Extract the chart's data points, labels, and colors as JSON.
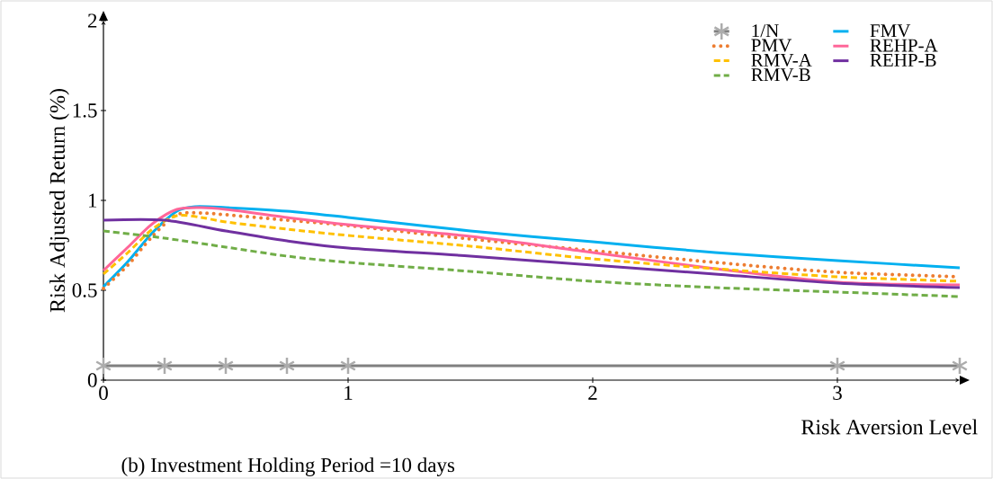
{
  "chart_data": {
    "type": "line",
    "xlabel": "Risk Aversion Level",
    "ylabel": "Risk Adjusted Return (%)",
    "annotations": [
      "(b) Investment Holding Period =10 days"
    ],
    "xlim": [
      0,
      3.5
    ],
    "ylim": [
      0,
      2
    ],
    "xticks": [
      0,
      1,
      2,
      3
    ],
    "yticks": [
      0,
      0.5,
      1,
      1.5,
      2
    ],
    "legend": "top right",
    "series": [
      {
        "name": "1/N",
        "color": "#808080",
        "marker": "cross",
        "x": [
          0,
          0.25,
          0.5,
          0.75,
          1,
          3,
          3.5
        ],
        "values": [
          0.08,
          0.08,
          0.08,
          0.08,
          0.08,
          0.08,
          0.08
        ]
      },
      {
        "name": "FMV",
        "color": "#00b0f0",
        "line_style": "solid",
        "x": [
          0,
          0.1,
          0.2,
          0.3,
          0.375,
          0.5,
          0.75,
          1,
          1.5,
          2,
          2.5,
          3,
          3.5
        ],
        "values": [
          0.52,
          0.66,
          0.82,
          0.94,
          0.965,
          0.96,
          0.94,
          0.905,
          0.83,
          0.77,
          0.71,
          0.665,
          0.625
        ]
      },
      {
        "name": "PMV",
        "color": "#ed7d31",
        "line_style": "dotted",
        "x": [
          0,
          0.1,
          0.2,
          0.3,
          0.4,
          0.5,
          0.75,
          1,
          1.5,
          2,
          2.5,
          3,
          3.5
        ],
        "values": [
          0.51,
          0.64,
          0.8,
          0.92,
          0.93,
          0.92,
          0.89,
          0.86,
          0.785,
          0.72,
          0.655,
          0.6,
          0.575
        ]
      },
      {
        "name": "REHP-A",
        "color": "#ff6699",
        "line_style": "solid",
        "x": [
          0,
          0.1,
          0.2,
          0.3,
          0.4,
          0.5,
          0.75,
          1,
          1.5,
          2,
          2.5,
          3,
          3.5
        ],
        "values": [
          0.61,
          0.74,
          0.87,
          0.95,
          0.96,
          0.95,
          0.905,
          0.865,
          0.8,
          0.71,
          0.62,
          0.545,
          0.53
        ]
      },
      {
        "name": "RMV-A",
        "color": "#ffc000",
        "line_style": "dashed",
        "x": [
          0,
          0.1,
          0.2,
          0.3,
          0.4,
          0.5,
          0.75,
          1,
          1.5,
          2,
          2.5,
          3,
          3.5
        ],
        "values": [
          0.59,
          0.71,
          0.84,
          0.915,
          0.905,
          0.88,
          0.84,
          0.805,
          0.745,
          0.675,
          0.62,
          0.575,
          0.55
        ]
      },
      {
        "name": "REHP-B",
        "color": "#7030a0",
        "line_style": "solid",
        "x": [
          0,
          0.25,
          0.5,
          0.75,
          1,
          1.5,
          2,
          2.5,
          3,
          3.5
        ],
        "values": [
          0.89,
          0.89,
          0.83,
          0.775,
          0.735,
          0.69,
          0.64,
          0.59,
          0.54,
          0.515
        ]
      },
      {
        "name": "RMV-B",
        "color": "#70ad47",
        "line_style": "dashed",
        "x": [
          0,
          0.25,
          0.5,
          0.75,
          1,
          1.5,
          2,
          2.5,
          3,
          3.5
        ],
        "values": [
          0.83,
          0.79,
          0.74,
          0.69,
          0.655,
          0.605,
          0.55,
          0.515,
          0.49,
          0.465
        ]
      }
    ]
  }
}
